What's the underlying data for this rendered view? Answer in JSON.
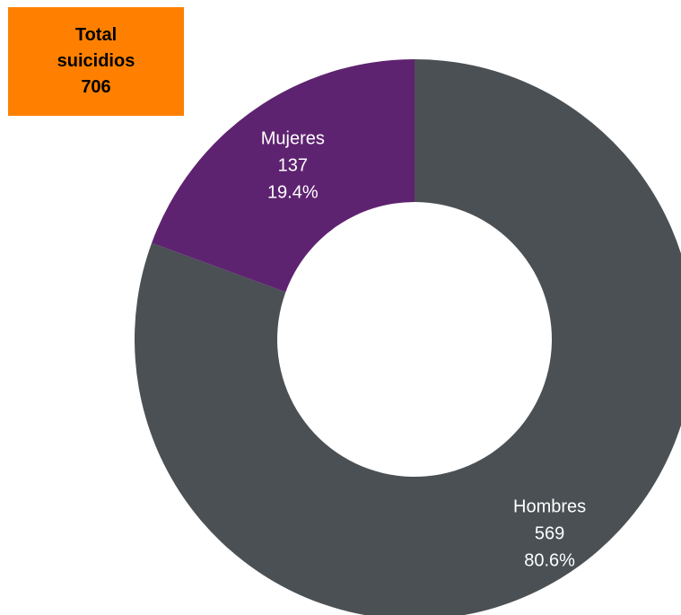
{
  "total_box": {
    "line1": "Total",
    "line2": "suicidios",
    "line3": "706",
    "color": "#ff8000"
  },
  "chart_data": {
    "type": "pie",
    "variant": "donut",
    "slices": [
      {
        "label": "Hombres",
        "value": 569,
        "percent": "80.6%",
        "color": "#4a5054"
      },
      {
        "label": "Mujeres",
        "value": 137,
        "percent": "19.4%",
        "color": "#5e2370"
      }
    ],
    "total": 706
  }
}
